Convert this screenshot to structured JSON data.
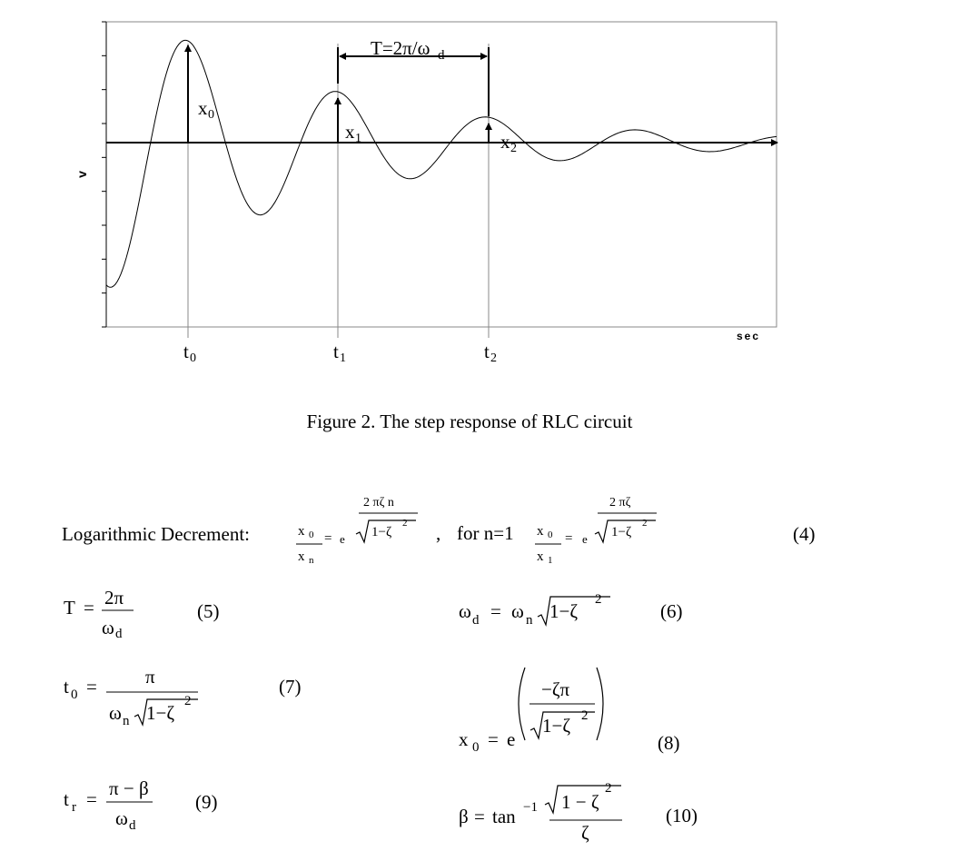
{
  "figure": {
    "y_axis_label": "v",
    "x_axis_label": "sec",
    "period": {
      "text": "T=2π/ω",
      "sub": "d"
    },
    "amplitudes": [
      {
        "text": "x",
        "sub": "0"
      },
      {
        "text": "x",
        "sub": "1"
      },
      {
        "text": "x",
        "sub": "2"
      }
    ],
    "times": [
      {
        "text": "t",
        "sub": "0"
      },
      {
        "text": "t",
        "sub": "1"
      },
      {
        "text": "t",
        "sub": "2"
      }
    ],
    "caption": "Figure 2. The step response of RLC circuit"
  },
  "equations": [
    {
      "number": "(4)",
      "parts": [
        "Logarithmic Decrement:",
        "x",
        "0",
        "x",
        "n",
        "=",
        "e",
        "2 πζ n",
        "1−ζ",
        "2",
        ",",
        "for n=1",
        "x",
        "0",
        "x",
        "1",
        "=",
        "e",
        "2 πζ",
        "1−ζ",
        "2"
      ]
    },
    {
      "number": "(5)",
      "parts": [
        "T",
        "=",
        "2π",
        "ω",
        "d"
      ]
    },
    {
      "number": "(6)",
      "parts": [
        "ω",
        "d",
        "=",
        "ω",
        "n",
        "1−ζ",
        "2"
      ]
    },
    {
      "number": "(7)",
      "parts": [
        "t",
        "0",
        "=",
        "π",
        "ω",
        "n",
        "1−ζ",
        "2"
      ]
    },
    {
      "number": "(8)",
      "parts": [
        "x",
        "0",
        "=",
        "e",
        "−ζπ",
        "1−ζ",
        "2"
      ]
    },
    {
      "number": "(9)",
      "parts": [
        "t",
        "r",
        "=",
        "π − β",
        "ω",
        "d"
      ]
    },
    {
      "number": "(10)",
      "parts": [
        "β",
        "=",
        "tan",
        "−1",
        "1 − ζ",
        "2",
        "ζ"
      ]
    }
  ]
}
